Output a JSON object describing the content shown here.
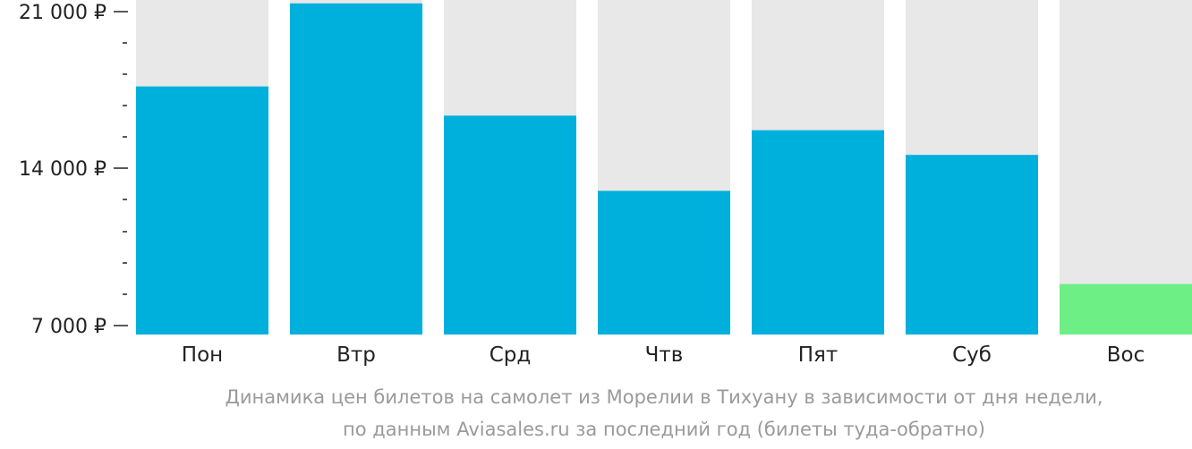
{
  "chart_data": {
    "type": "bar",
    "categories": [
      "Пон",
      "Втр",
      "Срд",
      "Чтв",
      "Пят",
      "Суб",
      "Вос"
    ],
    "values": [
      17650,
      21350,
      16350,
      13000,
      15700,
      14600,
      8850
    ],
    "y_ticks": [
      {
        "value": 7000,
        "label": "7 000 ₽"
      },
      {
        "value": 14000,
        "label": "14 000 ₽"
      },
      {
        "value": 21000,
        "label": "21 000 ₽"
      }
    ],
    "ylim": [
      6600,
      21500
    ],
    "minor_tick_step": 1400,
    "grid": false,
    "colors": {
      "bar": "#00b0dc",
      "bar_min": "#6def86",
      "bar_background": "#e8e8e8",
      "axis": "#222222"
    },
    "highlight_min": true
  },
  "caption": {
    "line1": "Динамика цен билетов на самолет из Морелии в Тихуану в зависимости от дня недели,",
    "line2": "по данным Aviasales.ru за последний год (билеты туда-обратно)"
  }
}
